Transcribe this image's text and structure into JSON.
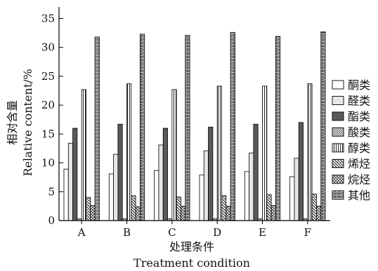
{
  "chart_data": {
    "type": "bar",
    "ylabel_cn": "相对含量",
    "ylabel_en": "Relative content/%",
    "xlabel_cn": "处理条件",
    "xlabel_en": "Treatment condition",
    "ylim": [
      0,
      37
    ],
    "yticks": [
      0,
      5,
      10,
      15,
      20,
      25,
      30,
      35
    ],
    "categories": [
      "A",
      "B",
      "C",
      "D",
      "E",
      "F"
    ],
    "legend_position": "right",
    "series": [
      {
        "name": "酮类",
        "values": [
          8.9,
          8.1,
          8.7,
          7.9,
          8.5,
          7.6
        ],
        "fill": "#ffffff",
        "pattern": "solid"
      },
      {
        "name": "醛类",
        "values": [
          13.4,
          11.5,
          13.1,
          12.1,
          11.7,
          10.8
        ],
        "fill": "#e6e6e6",
        "pattern": "solid"
      },
      {
        "name": "酯类",
        "values": [
          16.0,
          16.7,
          16.0,
          16.2,
          16.7,
          17.0
        ],
        "fill": "#5a5a5a",
        "pattern": "solid"
      },
      {
        "name": "酸类",
        "values": [
          0.3,
          0.3,
          0.3,
          0.3,
          0.3,
          0.3
        ],
        "fill": "#ffffff",
        "pattern": "diag-fine"
      },
      {
        "name": "醇类",
        "values": [
          22.7,
          23.7,
          22.7,
          23.3,
          23.3,
          23.7
        ],
        "fill": "#ffffff",
        "pattern": "vertical"
      },
      {
        "name": "烯烃",
        "values": [
          4.0,
          4.3,
          4.1,
          4.3,
          4.5,
          4.6
        ],
        "fill": "#ffffff",
        "pattern": "diag-bold"
      },
      {
        "name": "烷烃",
        "values": [
          2.6,
          2.4,
          2.5,
          2.5,
          2.6,
          2.5
        ],
        "fill": "#ffffff",
        "pattern": "cross"
      },
      {
        "name": "其他",
        "values": [
          31.8,
          32.3,
          32.1,
          32.6,
          31.9,
          32.7
        ],
        "fill": "#ffffff",
        "pattern": "brick"
      }
    ]
  }
}
